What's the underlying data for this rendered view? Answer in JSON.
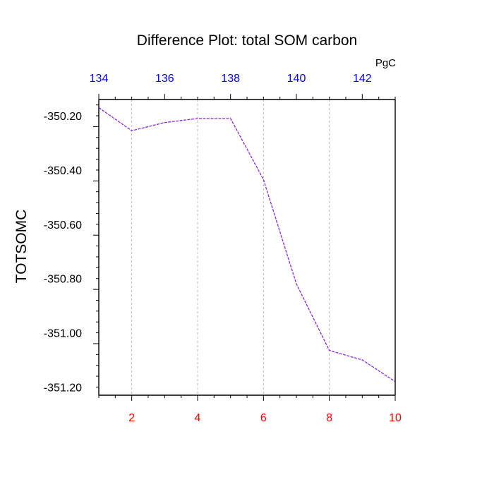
{
  "chart_data": {
    "type": "line",
    "title": "Difference Plot: total SOM carbon",
    "ylabel": "TOTSOMC",
    "top_axis_units": "PgC",
    "x": [
      1,
      2,
      3,
      4,
      5,
      6,
      7,
      8,
      9,
      10
    ],
    "x_ticks": [
      "2",
      "4",
      "6",
      "8",
      "10"
    ],
    "xlim": [
      1,
      10
    ],
    "top_ticks": [
      "134",
      "136",
      "138",
      "140",
      "142"
    ],
    "top_lim": [
      134,
      143
    ],
    "series": [
      {
        "values": [
          -350.17,
          -350.255,
          -350.225,
          -350.21,
          -350.21,
          -350.435,
          -350.82,
          -351.065,
          -351.1,
          -351.18
        ]
      }
    ],
    "y_ticks": [
      "-350.20",
      "-350.40",
      "-350.60",
      "-350.80",
      "-351.00",
      "-351.20"
    ],
    "ylim": [
      -351.23,
      -350.14
    ],
    "grid": "vertical-dashed",
    "colors": {
      "series": "#8a2be2",
      "bottom_ticks": "#ff0000",
      "top_ticks": "#0000ff",
      "grid": "#bbbbbb",
      "axis": "#000000"
    }
  }
}
